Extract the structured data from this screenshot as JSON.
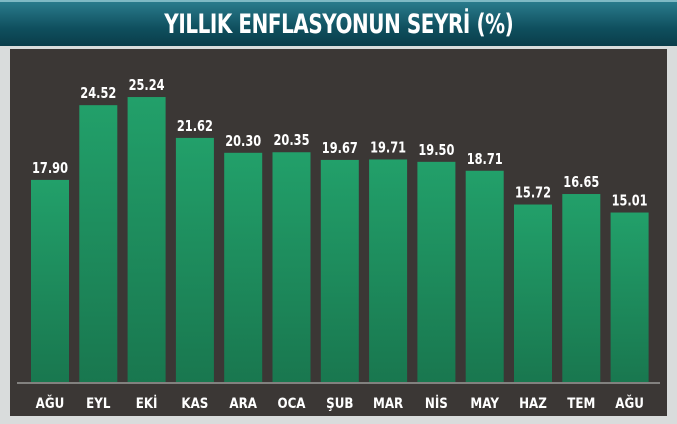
{
  "chart_data": {
    "type": "bar",
    "title": "YILLIK ENFLASYONUN SEYRİ (%)",
    "categories": [
      "AĞU",
      "EYL",
      "EKİ",
      "KAS",
      "ARA",
      "OCA",
      "ŞUB",
      "MAR",
      "NİS",
      "MAY",
      "HAZ",
      "TEM",
      "AĞU"
    ],
    "values": [
      17.9,
      24.52,
      25.24,
      21.62,
      20.3,
      20.35,
      19.67,
      19.71,
      19.5,
      18.71,
      15.72,
      16.65,
      15.01
    ],
    "value_labels": [
      "17.90",
      "24.52",
      "25.24",
      "21.62",
      "20.30",
      "20.35",
      "19.67",
      "19.71",
      "19.50",
      "18.71",
      "15.72",
      "16.65",
      "15.01"
    ],
    "xlabel": "",
    "ylabel": "",
    "ylim": [
      0,
      30
    ],
    "grid": false,
    "bar_color": "#1e8a5e",
    "title_bar_color": "#0f4f5e",
    "panel_color": "#3b3735"
  }
}
